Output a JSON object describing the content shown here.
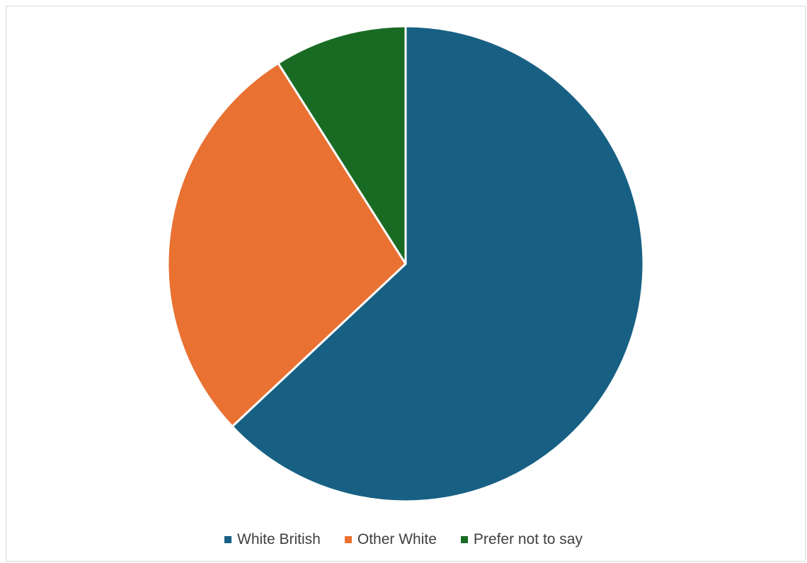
{
  "chart_data": {
    "type": "pie",
    "title": "",
    "categories": [
      "White British",
      "Other White",
      "Prefer not to say"
    ],
    "values": [
      63,
      28,
      9
    ],
    "colors": [
      "#176083",
      "#E97132",
      "#196B24"
    ],
    "start_angle_deg": 0,
    "direction": "clockwise",
    "legend": {
      "position": "bottom",
      "entries": [
        "White British",
        "Other White",
        "Prefer not to say"
      ]
    }
  }
}
